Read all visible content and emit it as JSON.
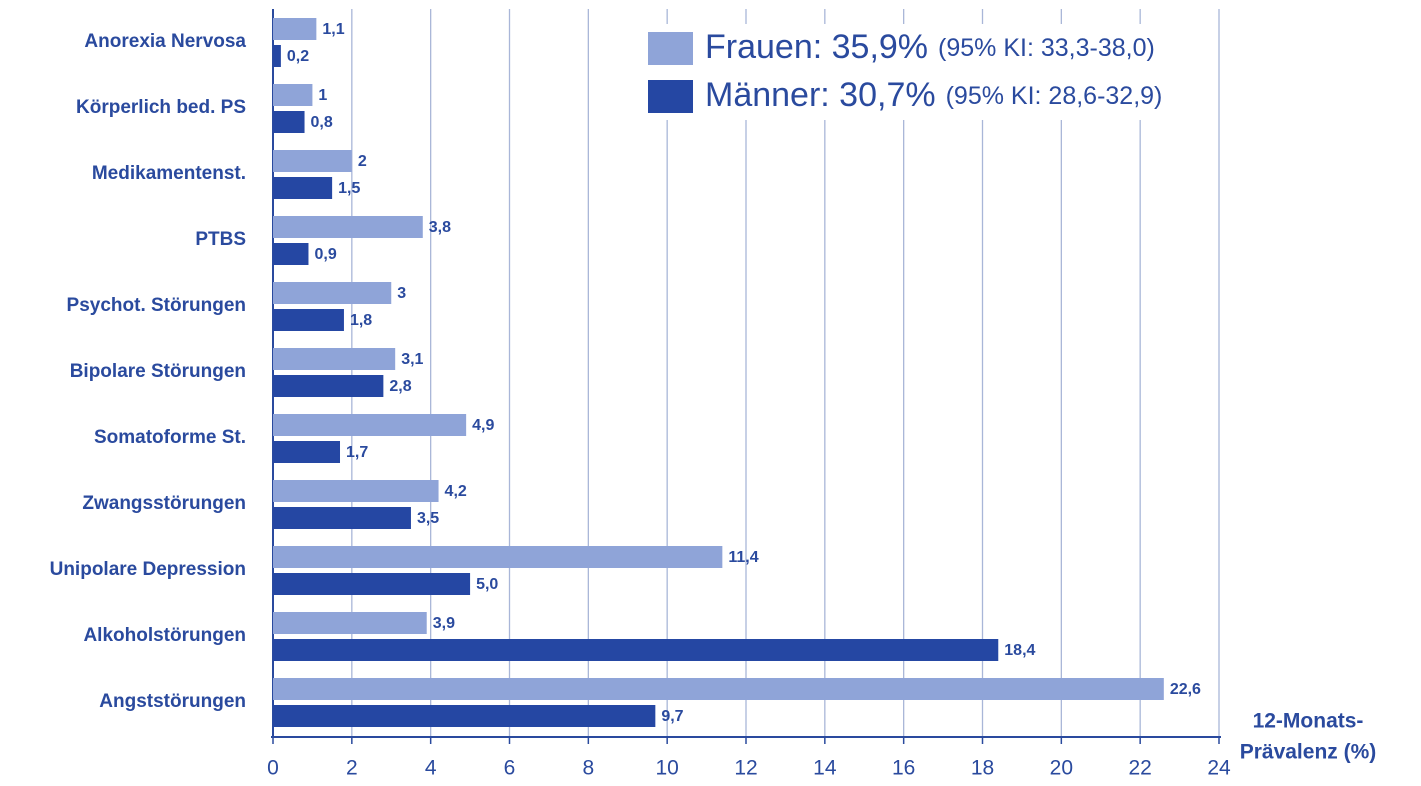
{
  "chart_data": {
    "type": "hbar",
    "categories": [
      "Anorexia Nervosa",
      "Körperlich bed. PS",
      "Medikamentenst.",
      "PTBS",
      "Psychot. Störungen",
      "Bipolare Störungen",
      "Somatoforme St.",
      "Zwangsstörungen",
      "Unipolare Depression",
      "Alkoholstörungen",
      "Angststörungen"
    ],
    "series": [
      {
        "name": "Frauen: 35,9%",
        "legend_note": "(95% KI: 33,3-38,0)",
        "color": "#8fa4d8",
        "values": [
          1.1,
          1,
          2,
          3.8,
          3,
          3.1,
          4.9,
          4.2,
          11.4,
          3.9,
          22.6
        ],
        "value_labels": [
          "1,1",
          "1",
          "2",
          "3,8",
          "3",
          "3,1",
          "4,9",
          "4,2",
          "11,4",
          "3,9",
          "22,6"
        ]
      },
      {
        "name": "Männer: 30,7%",
        "legend_note": "(95% KI: 28,6-32,9)",
        "color": "#2547a3",
        "values": [
          0.2,
          0.8,
          1.5,
          0.9,
          1.8,
          2.8,
          1.7,
          3.5,
          5.0,
          18.4,
          9.7
        ],
        "value_labels": [
          "0,2",
          "0,8",
          "1,5",
          "0,9",
          "1,8",
          "2,8",
          "1,7",
          "3,5",
          "5,0",
          "18,4",
          "9,7"
        ]
      }
    ],
    "xlabel": [
      "12-Monats-",
      "Prävalenz (%)"
    ],
    "xlim": [
      0,
      24
    ],
    "xticks": [
      0,
      2,
      4,
      6,
      8,
      10,
      12,
      14,
      16,
      18,
      20,
      22,
      24
    ],
    "grid": true
  }
}
